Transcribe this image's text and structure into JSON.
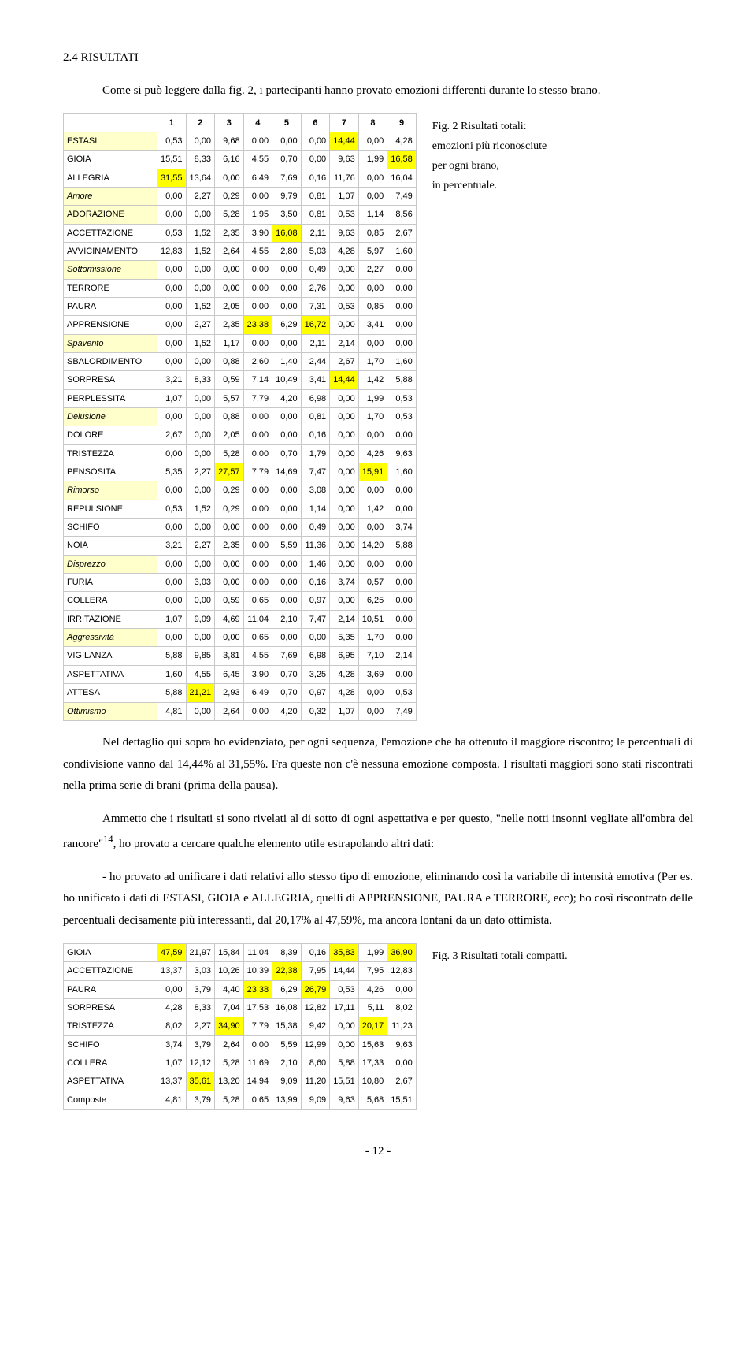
{
  "heading": "2.4 RISULTATI",
  "intro": "Come si può leggere dalla fig. 2, i partecipanti hanno provato emozioni differenti durante lo stesso brano.",
  "fig2_caption_line1": "Fig. 2 Risultati totali:",
  "fig2_caption_line2": "emozioni più riconosciute",
  "fig2_caption_line3": "per ogni brano,",
  "fig2_caption_line4": "in percentuale.",
  "para2": "Nel dettaglio qui sopra ho evidenziato, per ogni sequenza, l'emozione che ha ottenuto il maggiore riscontro; le percentuali di condivisione vanno dal 14,44% al 31,55%. Fra queste non c'è nessuna emozione composta. I risultati maggiori sono stati riscontrati nella prima serie di brani (prima della pausa).",
  "para3a": "Ammetto che i risultati si sono rivelati al di sotto di ogni aspettativa e per questo, \"nelle notti insonni vegliate all'ombra del rancore\"",
  "para3_note": "14",
  "para3b": ", ho provato a cercare qualche elemento utile estrapolando altri dati:",
  "bullet1": "- ho provato ad unificare i dati relativi allo stesso tipo di emozione, eliminando così la variabile di intensità emotiva (Per es. ho unificato i dati di ESTASI, GIOIA e ALLEGRIA, quelli di APPRENSIONE, PAURA e TERRORE, ecc); ho così riscontrato delle percentuali decisamente più interessanti, dal 20,17% al 47,59%, ma ancora lontani da un dato ottimista.",
  "fig3_caption": "Fig. 3 Risultati totali compatti.",
  "pagenum": "- 12 -",
  "table1": {
    "cols": [
      "1",
      "2",
      "3",
      "4",
      "5",
      "6",
      "7",
      "8",
      "9"
    ],
    "rows": [
      {
        "label": "ESTASI",
        "v": [
          "0,53",
          "0,00",
          "9,68",
          "0,00",
          "0,00",
          "0,00",
          "14,44",
          "0,00",
          "4,28"
        ],
        "hl": [
          6
        ],
        "lbl_hl": true
      },
      {
        "label": "GIOIA",
        "v": [
          "15,51",
          "8,33",
          "6,16",
          "4,55",
          "0,70",
          "0,00",
          "9,63",
          "1,99",
          "16,58"
        ],
        "hl": [
          8
        ]
      },
      {
        "label": "ALLEGRIA",
        "v": [
          "31,55",
          "13,64",
          "0,00",
          "6,49",
          "7,69",
          "0,16",
          "11,76",
          "0,00",
          "16,04"
        ],
        "hl": [
          0
        ]
      },
      {
        "label": "Amore",
        "comp": true,
        "v": [
          "0,00",
          "2,27",
          "0,29",
          "0,00",
          "9,79",
          "0,81",
          "1,07",
          "0,00",
          "7,49"
        ],
        "lbl_hl": true
      },
      {
        "label": "ADORAZIONE",
        "v": [
          "0,00",
          "0,00",
          "5,28",
          "1,95",
          "3,50",
          "0,81",
          "0,53",
          "1,14",
          "8,56"
        ],
        "lbl_hl": true
      },
      {
        "label": "ACCETTAZIONE",
        "v": [
          "0,53",
          "1,52",
          "2,35",
          "3,90",
          "16,08",
          "2,11",
          "9,63",
          "0,85",
          "2,67"
        ],
        "hl": [
          4
        ]
      },
      {
        "label": "AVVICINAMENTO",
        "v": [
          "12,83",
          "1,52",
          "2,64",
          "4,55",
          "2,80",
          "5,03",
          "4,28",
          "5,97",
          "1,60"
        ]
      },
      {
        "label": "Sottomissione",
        "comp": true,
        "v": [
          "0,00",
          "0,00",
          "0,00",
          "0,00",
          "0,00",
          "0,49",
          "0,00",
          "2,27",
          "0,00"
        ],
        "lbl_hl": true
      },
      {
        "label": "TERRORE",
        "v": [
          "0,00",
          "0,00",
          "0,00",
          "0,00",
          "0,00",
          "2,76",
          "0,00",
          "0,00",
          "0,00"
        ]
      },
      {
        "label": "PAURA",
        "v": [
          "0,00",
          "1,52",
          "2,05",
          "0,00",
          "0,00",
          "7,31",
          "0,53",
          "0,85",
          "0,00"
        ]
      },
      {
        "label": "APPRENSIONE",
        "v": [
          "0,00",
          "2,27",
          "2,35",
          "23,38",
          "6,29",
          "16,72",
          "0,00",
          "3,41",
          "0,00"
        ],
        "hl": [
          3,
          5
        ]
      },
      {
        "label": "Spavento",
        "comp": true,
        "v": [
          "0,00",
          "1,52",
          "1,17",
          "0,00",
          "0,00",
          "2,11",
          "2,14",
          "0,00",
          "0,00"
        ],
        "lbl_hl": true
      },
      {
        "label": "SBALORDIMENTO",
        "v": [
          "0,00",
          "0,00",
          "0,88",
          "2,60",
          "1,40",
          "2,44",
          "2,67",
          "1,70",
          "1,60"
        ]
      },
      {
        "label": "SORPRESA",
        "v": [
          "3,21",
          "8,33",
          "0,59",
          "7,14",
          "10,49",
          "3,41",
          "14,44",
          "1,42",
          "5,88"
        ],
        "hl": [
          6
        ]
      },
      {
        "label": "PERPLESSITA",
        "v": [
          "1,07",
          "0,00",
          "5,57",
          "7,79",
          "4,20",
          "6,98",
          "0,00",
          "1,99",
          "0,53"
        ]
      },
      {
        "label": "Delusione",
        "comp": true,
        "v": [
          "0,00",
          "0,00",
          "0,88",
          "0,00",
          "0,00",
          "0,81",
          "0,00",
          "1,70",
          "0,53"
        ],
        "lbl_hl": true
      },
      {
        "label": "DOLORE",
        "v": [
          "2,67",
          "0,00",
          "2,05",
          "0,00",
          "0,00",
          "0,16",
          "0,00",
          "0,00",
          "0,00"
        ]
      },
      {
        "label": "TRISTEZZA",
        "v": [
          "0,00",
          "0,00",
          "5,28",
          "0,00",
          "0,70",
          "1,79",
          "0,00",
          "4,26",
          "9,63"
        ]
      },
      {
        "label": "PENSOSITA",
        "v": [
          "5,35",
          "2,27",
          "27,57",
          "7,79",
          "14,69",
          "7,47",
          "0,00",
          "15,91",
          "1,60"
        ],
        "hl": [
          2,
          7
        ]
      },
      {
        "label": "Rimorso",
        "comp": true,
        "v": [
          "0,00",
          "0,00",
          "0,29",
          "0,00",
          "0,00",
          "3,08",
          "0,00",
          "0,00",
          "0,00"
        ],
        "lbl_hl": true
      },
      {
        "label": "REPULSIONE",
        "v": [
          "0,53",
          "1,52",
          "0,29",
          "0,00",
          "0,00",
          "1,14",
          "0,00",
          "1,42",
          "0,00"
        ]
      },
      {
        "label": "SCHIFO",
        "v": [
          "0,00",
          "0,00",
          "0,00",
          "0,00",
          "0,00",
          "0,49",
          "0,00",
          "0,00",
          "3,74"
        ]
      },
      {
        "label": "NOIA",
        "v": [
          "3,21",
          "2,27",
          "2,35",
          "0,00",
          "5,59",
          "11,36",
          "0,00",
          "14,20",
          "5,88"
        ]
      },
      {
        "label": "Disprezzo",
        "comp": true,
        "v": [
          "0,00",
          "0,00",
          "0,00",
          "0,00",
          "0,00",
          "1,46",
          "0,00",
          "0,00",
          "0,00"
        ],
        "lbl_hl": true
      },
      {
        "label": "FURIA",
        "v": [
          "0,00",
          "3,03",
          "0,00",
          "0,00",
          "0,00",
          "0,16",
          "3,74",
          "0,57",
          "0,00"
        ]
      },
      {
        "label": "COLLERA",
        "v": [
          "0,00",
          "0,00",
          "0,59",
          "0,65",
          "0,00",
          "0,97",
          "0,00",
          "6,25",
          "0,00"
        ]
      },
      {
        "label": "IRRITAZIONE",
        "v": [
          "1,07",
          "9,09",
          "4,69",
          "11,04",
          "2,10",
          "7,47",
          "2,14",
          "10,51",
          "0,00"
        ]
      },
      {
        "label": "Aggressività",
        "comp": true,
        "v": [
          "0,00",
          "0,00",
          "0,00",
          "0,65",
          "0,00",
          "0,00",
          "5,35",
          "1,70",
          "0,00"
        ],
        "lbl_hl": true
      },
      {
        "label": "VIGILANZA",
        "v": [
          "5,88",
          "9,85",
          "3,81",
          "4,55",
          "7,69",
          "6,98",
          "6,95",
          "7,10",
          "2,14"
        ]
      },
      {
        "label": "ASPETTATIVA",
        "v": [
          "1,60",
          "4,55",
          "6,45",
          "3,90",
          "0,70",
          "3,25",
          "4,28",
          "3,69",
          "0,00"
        ]
      },
      {
        "label": "ATTESA",
        "v": [
          "5,88",
          "21,21",
          "2,93",
          "6,49",
          "0,70",
          "0,97",
          "4,28",
          "0,00",
          "0,53"
        ],
        "hl": [
          1
        ]
      },
      {
        "label": "Ottimismo",
        "comp": true,
        "v": [
          "4,81",
          "0,00",
          "2,64",
          "0,00",
          "4,20",
          "0,32",
          "1,07",
          "0,00",
          "7,49"
        ],
        "lbl_hl": true
      }
    ]
  },
  "table2": {
    "rows": [
      {
        "label": "GIOIA",
        "v": [
          "47,59",
          "21,97",
          "15,84",
          "11,04",
          "8,39",
          "0,16",
          "35,83",
          "1,99",
          "36,90"
        ],
        "hl": [
          0,
          6,
          8
        ]
      },
      {
        "label": "ACCETTAZIONE",
        "v": [
          "13,37",
          "3,03",
          "10,26",
          "10,39",
          "22,38",
          "7,95",
          "14,44",
          "7,95",
          "12,83"
        ],
        "hl": [
          4
        ]
      },
      {
        "label": "PAURA",
        "v": [
          "0,00",
          "3,79",
          "4,40",
          "23,38",
          "6,29",
          "26,79",
          "0,53",
          "4,26",
          "0,00"
        ],
        "hl": [
          3,
          5
        ]
      },
      {
        "label": "SORPRESA",
        "v": [
          "4,28",
          "8,33",
          "7,04",
          "17,53",
          "16,08",
          "12,82",
          "17,11",
          "5,11",
          "8,02"
        ]
      },
      {
        "label": "TRISTEZZA",
        "v": [
          "8,02",
          "2,27",
          "34,90",
          "7,79",
          "15,38",
          "9,42",
          "0,00",
          "20,17",
          "11,23"
        ],
        "hl": [
          2,
          7
        ]
      },
      {
        "label": "SCHIFO",
        "v": [
          "3,74",
          "3,79",
          "2,64",
          "0,00",
          "5,59",
          "12,99",
          "0,00",
          "15,63",
          "9,63"
        ]
      },
      {
        "label": "COLLERA",
        "v": [
          "1,07",
          "12,12",
          "5,28",
          "11,69",
          "2,10",
          "8,60",
          "5,88",
          "17,33",
          "0,00"
        ]
      },
      {
        "label": "ASPETTATIVA",
        "v": [
          "13,37",
          "35,61",
          "13,20",
          "14,94",
          "9,09",
          "11,20",
          "15,51",
          "10,80",
          "2,67"
        ],
        "hl": [
          1
        ]
      },
      {
        "label": "Composte",
        "v": [
          "4,81",
          "3,79",
          "5,28",
          "0,65",
          "13,99",
          "9,09",
          "9,63",
          "5,68",
          "15,51"
        ]
      }
    ]
  }
}
